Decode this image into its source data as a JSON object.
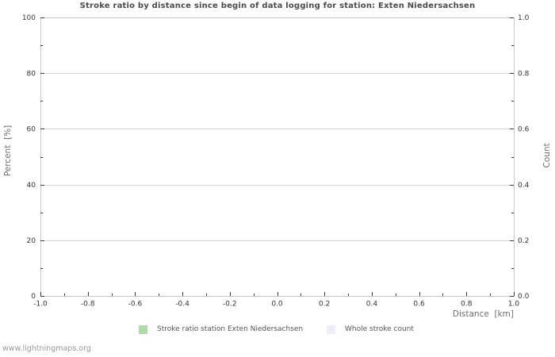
{
  "page": {
    "watermark": "www.lightningmaps.org"
  },
  "chart_data": {
    "type": "bar",
    "title": "Stroke ratio by distance since begin of data logging for station: Exten Niedersachsen",
    "xlabel": "Distance  [km]",
    "ylabel": "Percent  [%]",
    "y2label": "Count",
    "xlim": [
      -1.0,
      1.0
    ],
    "ylim": [
      0,
      100
    ],
    "y2lim": [
      0.0,
      1.0
    ],
    "x_ticks": [
      -1.0,
      -0.8,
      -0.6,
      -0.4,
      -0.2,
      0.0,
      0.2,
      0.4,
      0.6,
      0.8,
      1.0
    ],
    "x_tick_labels": [
      "-1.0",
      "-0.8",
      "-0.6",
      "-0.4",
      "-0.2",
      "0.0",
      "0.2",
      "0.4",
      "0.6",
      "0.8",
      "1.0"
    ],
    "y_ticks": [
      0,
      20,
      40,
      60,
      80,
      100
    ],
    "y_tick_labels": [
      "0",
      "20",
      "40",
      "60",
      "80",
      "100"
    ],
    "y2_ticks": [
      0.0,
      0.2,
      0.4,
      0.6,
      0.8,
      1.0
    ],
    "y2_tick_labels": [
      "0.0",
      "0.2",
      "0.4",
      "0.6",
      "0.8",
      "1.0"
    ],
    "grid": "horizontal-only",
    "legend_position": "bottom-center",
    "legend": [
      {
        "label": "Stroke ratio station Exten Niedersachsen",
        "color": "#b0d9a8"
      },
      {
        "label": "Whole stroke count",
        "color": "#eceefa"
      }
    ],
    "categories": [],
    "series": [
      {
        "name": "Stroke ratio station Exten Niedersachsen",
        "axis": "left",
        "values": []
      },
      {
        "name": "Whole stroke count",
        "axis": "right",
        "values": []
      }
    ],
    "colors": {
      "grid": "#d2d2d2",
      "border": "#c6c6c6",
      "tick_mark": "#3a3a3a",
      "title_text": "#4a4a4a",
      "tick_text": "#333333",
      "axis_title_text": "#6e6e6e",
      "legend_text": "#555555",
      "watermark_text": "#9a9a9a"
    }
  }
}
